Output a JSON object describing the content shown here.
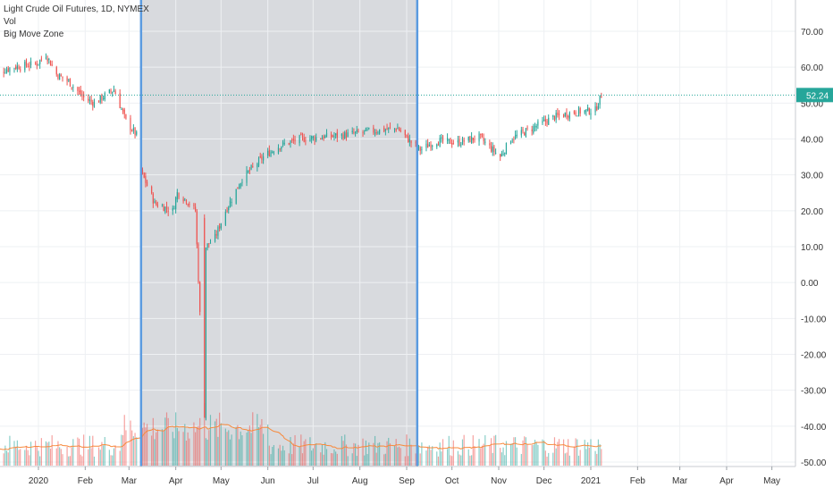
{
  "legend": {
    "symbol": "Light Crude Oil Futures, 1D, NYMEX",
    "vol": "Vol",
    "indicator": "Big Move Zone"
  },
  "colors": {
    "up": "#26a69a",
    "down": "#ef5350",
    "zone_fill": "#d6d8dc",
    "zone_border": "#5b9be0",
    "last_price_bg": "#26a69a",
    "vol_ma": "#f7893b",
    "grid": "#eef0f3"
  },
  "chart_data": {
    "type": "candlestick",
    "title": "Light Crude Oil Futures, 1D, NYMEX",
    "ylim": [
      -50,
      80
    ],
    "y_ticks": [
      "70.00",
      "60.00",
      "50.00",
      "40.00",
      "30.00",
      "20.00",
      "10.00",
      "0.00",
      "-10.00",
      "-20.00",
      "-30.00",
      "-40.00",
      "-50.00"
    ],
    "last_price": "52.24",
    "x_ticks": [
      "2020",
      "Feb",
      "Mar",
      "Apr",
      "May",
      "Jun",
      "Jul",
      "Aug",
      "Sep",
      "Oct",
      "Nov",
      "Dec",
      "2021",
      "Feb",
      "Mar",
      "Apr",
      "May"
    ],
    "x_range": [
      "2019-12-01",
      "2021-06-01"
    ],
    "highlight_zone": {
      "start": "2020-03-09",
      "end": "2020-09-08",
      "label": "Big Move Zone"
    },
    "price_path": [
      {
        "date": "2019-12-01",
        "close": 58
      },
      {
        "date": "2019-12-15",
        "close": 60
      },
      {
        "date": "2019-12-31",
        "close": 61
      },
      {
        "date": "2020-01-06",
        "close": 63.5
      },
      {
        "date": "2020-01-13",
        "close": 58
      },
      {
        "date": "2020-01-21",
        "close": 56
      },
      {
        "date": "2020-01-31",
        "close": 51.5
      },
      {
        "date": "2020-02-07",
        "close": 50
      },
      {
        "date": "2020-02-20",
        "close": 53.8
      },
      {
        "date": "2020-02-28",
        "close": 45
      },
      {
        "date": "2020-03-06",
        "close": 41
      },
      {
        "date": "2020-03-09",
        "close": 31
      },
      {
        "date": "2020-03-18",
        "close": 22
      },
      {
        "date": "2020-03-30",
        "close": 20
      },
      {
        "date": "2020-04-02",
        "close": 25
      },
      {
        "date": "2020-04-08",
        "close": 23
      },
      {
        "date": "2020-04-14",
        "close": 20
      },
      {
        "date": "2020-04-20",
        "close": -37.6
      },
      {
        "date": "2020-04-21",
        "close": 10
      },
      {
        "date": "2020-04-27",
        "close": 12.5
      },
      {
        "date": "2020-05-04",
        "close": 20
      },
      {
        "date": "2020-05-15",
        "close": 29
      },
      {
        "date": "2020-05-29",
        "close": 35
      },
      {
        "date": "2020-06-08",
        "close": 38
      },
      {
        "date": "2020-06-22",
        "close": 40
      },
      {
        "date": "2020-07-06",
        "close": 40.5
      },
      {
        "date": "2020-07-20",
        "close": 41
      },
      {
        "date": "2020-08-05",
        "close": 42
      },
      {
        "date": "2020-08-26",
        "close": 43
      },
      {
        "date": "2020-09-04",
        "close": 39
      },
      {
        "date": "2020-09-10",
        "close": 37
      },
      {
        "date": "2020-09-21",
        "close": 39.5
      },
      {
        "date": "2020-10-05",
        "close": 39
      },
      {
        "date": "2020-10-19",
        "close": 40.5
      },
      {
        "date": "2020-11-02",
        "close": 35
      },
      {
        "date": "2020-11-09",
        "close": 40
      },
      {
        "date": "2020-11-23",
        "close": 43
      },
      {
        "date": "2020-12-07",
        "close": 46
      },
      {
        "date": "2020-12-21",
        "close": 47.5
      },
      {
        "date": "2021-01-04",
        "close": 48
      },
      {
        "date": "2021-01-08",
        "close": 52.2
      }
    ]
  }
}
